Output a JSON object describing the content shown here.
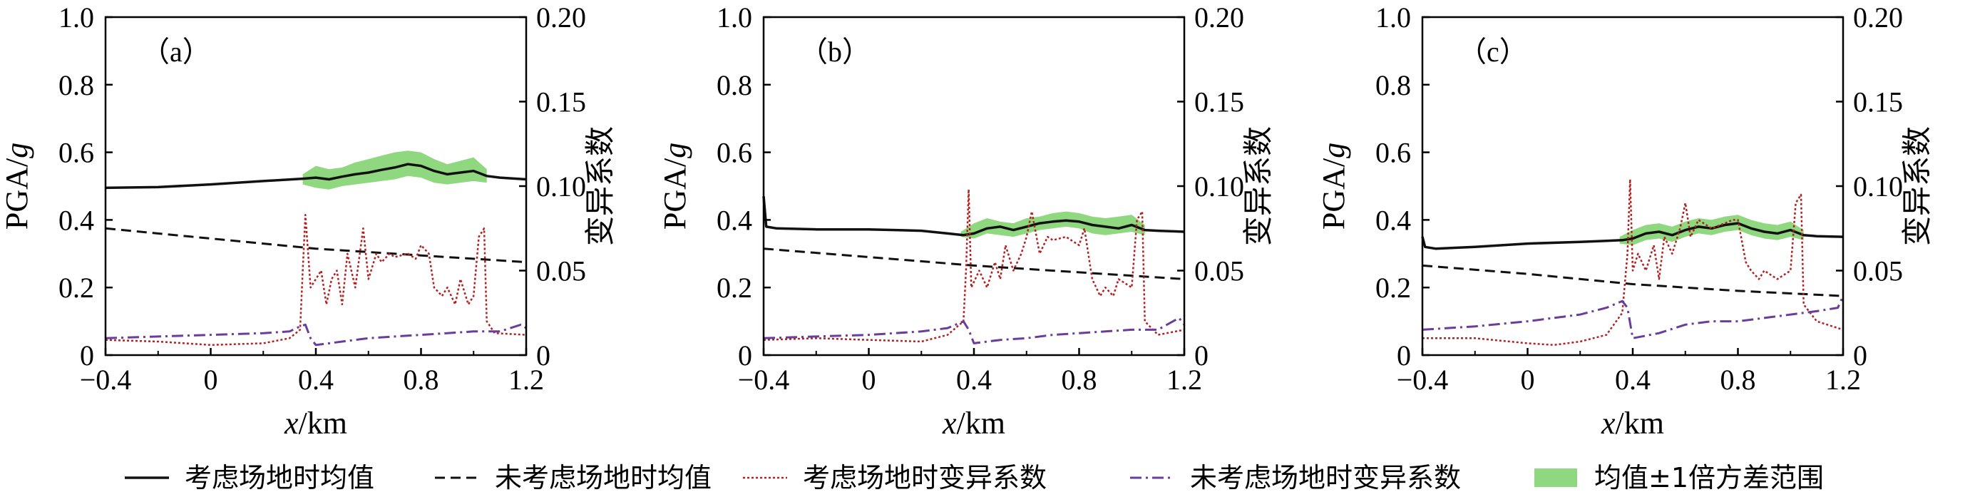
{
  "colors": {
    "mean_site": "#111111",
    "mean_nosite": "#111111",
    "cv_site": "#b22222",
    "cv_nosite": "#6a3d9a",
    "band": "#8fd87f",
    "axis": "#000000"
  },
  "legend": [
    "考虑场地时均值",
    "未考虑场地时均值",
    "考虑场地时变异系数",
    "未考虑场地时变异系数",
    "均值±1倍方差范围"
  ],
  "chart_data": [
    {
      "type": "line",
      "panel_label": "（a）",
      "xlabel": "x/km",
      "ylabel": "PGA/g",
      "ylabel2": "变异系数",
      "xlim": [
        -0.4,
        1.2
      ],
      "ylim": [
        0,
        1.0
      ],
      "ylim2": [
        0,
        0.2
      ],
      "xticks": [
        "−0.4",
        "0",
        "0.4",
        "0.8",
        "1.2"
      ],
      "yticks": [
        "0",
        "0.2",
        "0.4",
        "0.6",
        "0.8",
        "1.0"
      ],
      "yticks2": [
        "0",
        "0.05",
        "0.10",
        "0.15",
        "0.20"
      ],
      "series": [
        {
          "name": "考虑场地时均值",
          "axis": "left",
          "style": "solid",
          "x": [
            -0.4,
            -0.2,
            0,
            0.2,
            0.35,
            0.4,
            0.45,
            0.5,
            0.55,
            0.6,
            0.65,
            0.7,
            0.75,
            0.8,
            0.85,
            0.9,
            0.95,
            1.0,
            1.05,
            1.1,
            1.2
          ],
          "y": [
            0.495,
            0.497,
            0.505,
            0.515,
            0.522,
            0.525,
            0.52,
            0.528,
            0.535,
            0.54,
            0.548,
            0.555,
            0.565,
            0.56,
            0.545,
            0.535,
            0.54,
            0.545,
            0.53,
            0.525,
            0.52
          ]
        },
        {
          "name": "未考虑场地时均值",
          "axis": "left",
          "style": "dashed",
          "x": [
            -0.4,
            0,
            0.4,
            0.8,
            1.2
          ],
          "y": [
            0.375,
            0.345,
            0.315,
            0.295,
            0.275
          ]
        },
        {
          "name": "考虑场地时变异系数",
          "axis": "right",
          "style": "dotted",
          "x": [
            -0.4,
            -0.2,
            0,
            0.2,
            0.3,
            0.34,
            0.35,
            0.36,
            0.38,
            0.42,
            0.44,
            0.46,
            0.48,
            0.5,
            0.52,
            0.55,
            0.58,
            0.6,
            0.63,
            0.65,
            0.68,
            0.7,
            0.75,
            0.78,
            0.8,
            0.83,
            0.85,
            0.88,
            0.9,
            0.93,
            0.95,
            0.98,
            1.0,
            1.02,
            1.04,
            1.05,
            1.08,
            1.2
          ],
          "y": [
            0.009,
            0.008,
            0.006,
            0.007,
            0.01,
            0.015,
            0.05,
            0.083,
            0.04,
            0.05,
            0.03,
            0.045,
            0.05,
            0.03,
            0.06,
            0.04,
            0.075,
            0.045,
            0.06,
            0.055,
            0.06,
            0.058,
            0.06,
            0.057,
            0.065,
            0.06,
            0.04,
            0.035,
            0.04,
            0.03,
            0.045,
            0.03,
            0.035,
            0.07,
            0.075,
            0.02,
            0.013,
            0.012
          ]
        },
        {
          "name": "未考虑场地时变异系数",
          "axis": "right",
          "style": "dashdot",
          "x": [
            -0.4,
            -0.2,
            0,
            0.2,
            0.3,
            0.34,
            0.36,
            0.38,
            0.4,
            0.5,
            0.6,
            0.7,
            0.8,
            0.9,
            1.0,
            1.1,
            1.18,
            1.2
          ],
          "y": [
            0.01,
            0.011,
            0.012,
            0.013,
            0.014,
            0.017,
            0.018,
            0.01,
            0.006,
            0.008,
            0.01,
            0.011,
            0.012,
            0.013,
            0.014,
            0.014,
            0.018,
            0.016
          ]
        }
      ],
      "band": {
        "name": "均值±1倍方差范围",
        "x": [
          0.35,
          0.4,
          0.45,
          0.5,
          0.55,
          0.6,
          0.65,
          0.7,
          0.75,
          0.8,
          0.85,
          0.9,
          0.95,
          1.0,
          1.05
        ],
        "lower": [
          0.505,
          0.495,
          0.49,
          0.5,
          0.505,
          0.51,
          0.515,
          0.52,
          0.53,
          0.525,
          0.51,
          0.505,
          0.51,
          0.515,
          0.51
        ],
        "upper": [
          0.535,
          0.56,
          0.55,
          0.555,
          0.57,
          0.58,
          0.59,
          0.6,
          0.605,
          0.6,
          0.58,
          0.565,
          0.575,
          0.585,
          0.55
        ]
      }
    },
    {
      "type": "line",
      "panel_label": "（b）",
      "xlabel": "x/km",
      "ylabel": "PGA/g",
      "ylabel2": "变异系数",
      "xlim": [
        -0.4,
        1.2
      ],
      "ylim": [
        0,
        1.0
      ],
      "ylim2": [
        0,
        0.2
      ],
      "xticks": [
        "−0.4",
        "0",
        "0.4",
        "0.8",
        "1.2"
      ],
      "yticks": [
        "0",
        "0.2",
        "0.4",
        "0.6",
        "0.8",
        "1.0"
      ],
      "yticks2": [
        "0",
        "0.05",
        "0.10",
        "0.15",
        "0.20"
      ],
      "series": [
        {
          "name": "考虑场地时均值",
          "axis": "left",
          "style": "solid",
          "x": [
            -0.4,
            -0.39,
            -0.35,
            -0.2,
            0,
            0.2,
            0.3,
            0.36,
            0.4,
            0.45,
            0.5,
            0.55,
            0.6,
            0.65,
            0.7,
            0.75,
            0.8,
            0.85,
            0.9,
            0.95,
            1.0,
            1.05,
            1.1,
            1.2
          ],
          "y": [
            0.47,
            0.38,
            0.375,
            0.372,
            0.372,
            0.368,
            0.36,
            0.355,
            0.36,
            0.375,
            0.38,
            0.37,
            0.38,
            0.39,
            0.395,
            0.398,
            0.395,
            0.385,
            0.38,
            0.375,
            0.385,
            0.37,
            0.368,
            0.365
          ]
        },
        {
          "name": "未考虑场地时均值",
          "axis": "left",
          "style": "dashed",
          "x": [
            -0.4,
            0,
            0.4,
            0.8,
            1.2
          ],
          "y": [
            0.315,
            0.29,
            0.265,
            0.245,
            0.225
          ]
        },
        {
          "name": "考虑场地时变异系数",
          "axis": "right",
          "style": "dotted",
          "x": [
            -0.4,
            -0.2,
            0,
            0.2,
            0.3,
            0.36,
            0.37,
            0.38,
            0.39,
            0.42,
            0.45,
            0.48,
            0.5,
            0.52,
            0.55,
            0.58,
            0.6,
            0.62,
            0.65,
            0.68,
            0.7,
            0.75,
            0.8,
            0.82,
            0.85,
            0.88,
            0.9,
            0.93,
            0.95,
            1.0,
            1.02,
            1.04,
            1.05,
            1.1,
            1.2
          ],
          "y": [
            0.009,
            0.01,
            0.009,
            0.008,
            0.012,
            0.02,
            0.05,
            0.098,
            0.04,
            0.05,
            0.04,
            0.055,
            0.045,
            0.065,
            0.05,
            0.06,
            0.07,
            0.085,
            0.06,
            0.07,
            0.068,
            0.07,
            0.065,
            0.075,
            0.045,
            0.035,
            0.04,
            0.035,
            0.045,
            0.04,
            0.08,
            0.085,
            0.02,
            0.012,
            0.015
          ]
        },
        {
          "name": "未考虑场地时变异系数",
          "axis": "right",
          "style": "dashdot",
          "x": [
            -0.4,
            -0.2,
            0,
            0.2,
            0.3,
            0.36,
            0.38,
            0.4,
            0.5,
            0.6,
            0.7,
            0.8,
            0.9,
            1.0,
            1.1,
            1.18,
            1.2
          ],
          "y": [
            0.01,
            0.011,
            0.012,
            0.014,
            0.016,
            0.02,
            0.015,
            0.007,
            0.009,
            0.01,
            0.012,
            0.013,
            0.014,
            0.015,
            0.015,
            0.022,
            0.018
          ]
        }
      ],
      "band": {
        "name": "均值±1倍方差范围",
        "x": [
          0.35,
          0.4,
          0.45,
          0.5,
          0.55,
          0.6,
          0.65,
          0.7,
          0.75,
          0.8,
          0.85,
          0.9,
          0.95,
          1.0,
          1.05
        ],
        "lower": [
          0.35,
          0.345,
          0.36,
          0.355,
          0.35,
          0.36,
          0.37,
          0.375,
          0.38,
          0.375,
          0.36,
          0.355,
          0.36,
          0.365,
          0.355
        ],
        "upper": [
          0.365,
          0.39,
          0.405,
          0.395,
          0.39,
          0.405,
          0.41,
          0.42,
          0.425,
          0.42,
          0.41,
          0.405,
          0.41,
          0.415,
          0.385
        ]
      }
    },
    {
      "type": "line",
      "panel_label": "（c）",
      "xlabel": "x/km",
      "ylabel": "PGA/g",
      "ylabel2": "变异系数",
      "xlim": [
        -0.4,
        1.2
      ],
      "ylim": [
        0,
        1.0
      ],
      "ylim2": [
        0,
        0.2
      ],
      "xticks": [
        "−0.4",
        "0",
        "0.4",
        "0.8",
        "1.2"
      ],
      "yticks": [
        "0",
        "0.2",
        "0.4",
        "0.6",
        "0.8",
        "1.0"
      ],
      "yticks2": [
        "0",
        "0.05",
        "0.10",
        "0.15",
        "0.20"
      ],
      "series": [
        {
          "name": "考虑场地时均值",
          "axis": "left",
          "style": "solid",
          "x": [
            -0.4,
            -0.39,
            -0.35,
            -0.2,
            0,
            0.2,
            0.3,
            0.36,
            0.4,
            0.45,
            0.5,
            0.55,
            0.6,
            0.65,
            0.7,
            0.75,
            0.8,
            0.85,
            0.9,
            0.95,
            1.0,
            1.05,
            1.1,
            1.2
          ],
          "y": [
            0.35,
            0.32,
            0.315,
            0.32,
            0.33,
            0.335,
            0.338,
            0.34,
            0.345,
            0.36,
            0.365,
            0.355,
            0.37,
            0.38,
            0.375,
            0.385,
            0.39,
            0.375,
            0.365,
            0.36,
            0.37,
            0.355,
            0.352,
            0.35
          ]
        },
        {
          "name": "未考虑场地时均值",
          "axis": "left",
          "style": "dashed",
          "x": [
            -0.4,
            0,
            0.4,
            0.8,
            1.2
          ],
          "y": [
            0.265,
            0.24,
            0.21,
            0.19,
            0.175
          ]
        },
        {
          "name": "考虑场地时变异系数",
          "axis": "right",
          "style": "dotted",
          "x": [
            -0.4,
            -0.2,
            0,
            0.1,
            0.2,
            0.3,
            0.36,
            0.38,
            0.39,
            0.4,
            0.42,
            0.45,
            0.48,
            0.5,
            0.52,
            0.55,
            0.58,
            0.6,
            0.62,
            0.65,
            0.7,
            0.75,
            0.78,
            0.8,
            0.83,
            0.85,
            0.88,
            0.9,
            0.95,
            1.0,
            1.02,
            1.04,
            1.05,
            1.1,
            1.2
          ],
          "y": [
            0.01,
            0.01,
            0.007,
            0.006,
            0.008,
            0.012,
            0.025,
            0.06,
            0.104,
            0.05,
            0.06,
            0.05,
            0.065,
            0.045,
            0.07,
            0.06,
            0.075,
            0.09,
            0.07,
            0.08,
            0.075,
            0.078,
            0.08,
            0.08,
            0.055,
            0.05,
            0.045,
            0.05,
            0.045,
            0.05,
            0.09,
            0.095,
            0.03,
            0.02,
            0.015
          ]
        },
        {
          "name": "未考虑场地时变异系数",
          "axis": "right",
          "style": "dashdot",
          "x": [
            -0.4,
            -0.2,
            0,
            0.2,
            0.3,
            0.36,
            0.38,
            0.4,
            0.5,
            0.6,
            0.7,
            0.8,
            0.9,
            1.0,
            1.1,
            1.18,
            1.2
          ],
          "y": [
            0.015,
            0.017,
            0.02,
            0.024,
            0.028,
            0.032,
            0.028,
            0.01,
            0.013,
            0.018,
            0.02,
            0.02,
            0.022,
            0.024,
            0.026,
            0.028,
            0.035
          ]
        }
      ],
      "band": {
        "name": "均值±1倍方差范围",
        "x": [
          0.35,
          0.4,
          0.45,
          0.5,
          0.55,
          0.6,
          0.65,
          0.7,
          0.75,
          0.8,
          0.85,
          0.9,
          0.95,
          1.0,
          1.05
        ],
        "lower": [
          0.33,
          0.325,
          0.34,
          0.345,
          0.335,
          0.35,
          0.36,
          0.355,
          0.365,
          0.37,
          0.355,
          0.345,
          0.34,
          0.35,
          0.34
        ],
        "upper": [
          0.35,
          0.37,
          0.385,
          0.39,
          0.38,
          0.395,
          0.405,
          0.4,
          0.41,
          0.415,
          0.4,
          0.39,
          0.385,
          0.395,
          0.37
        ]
      }
    }
  ]
}
